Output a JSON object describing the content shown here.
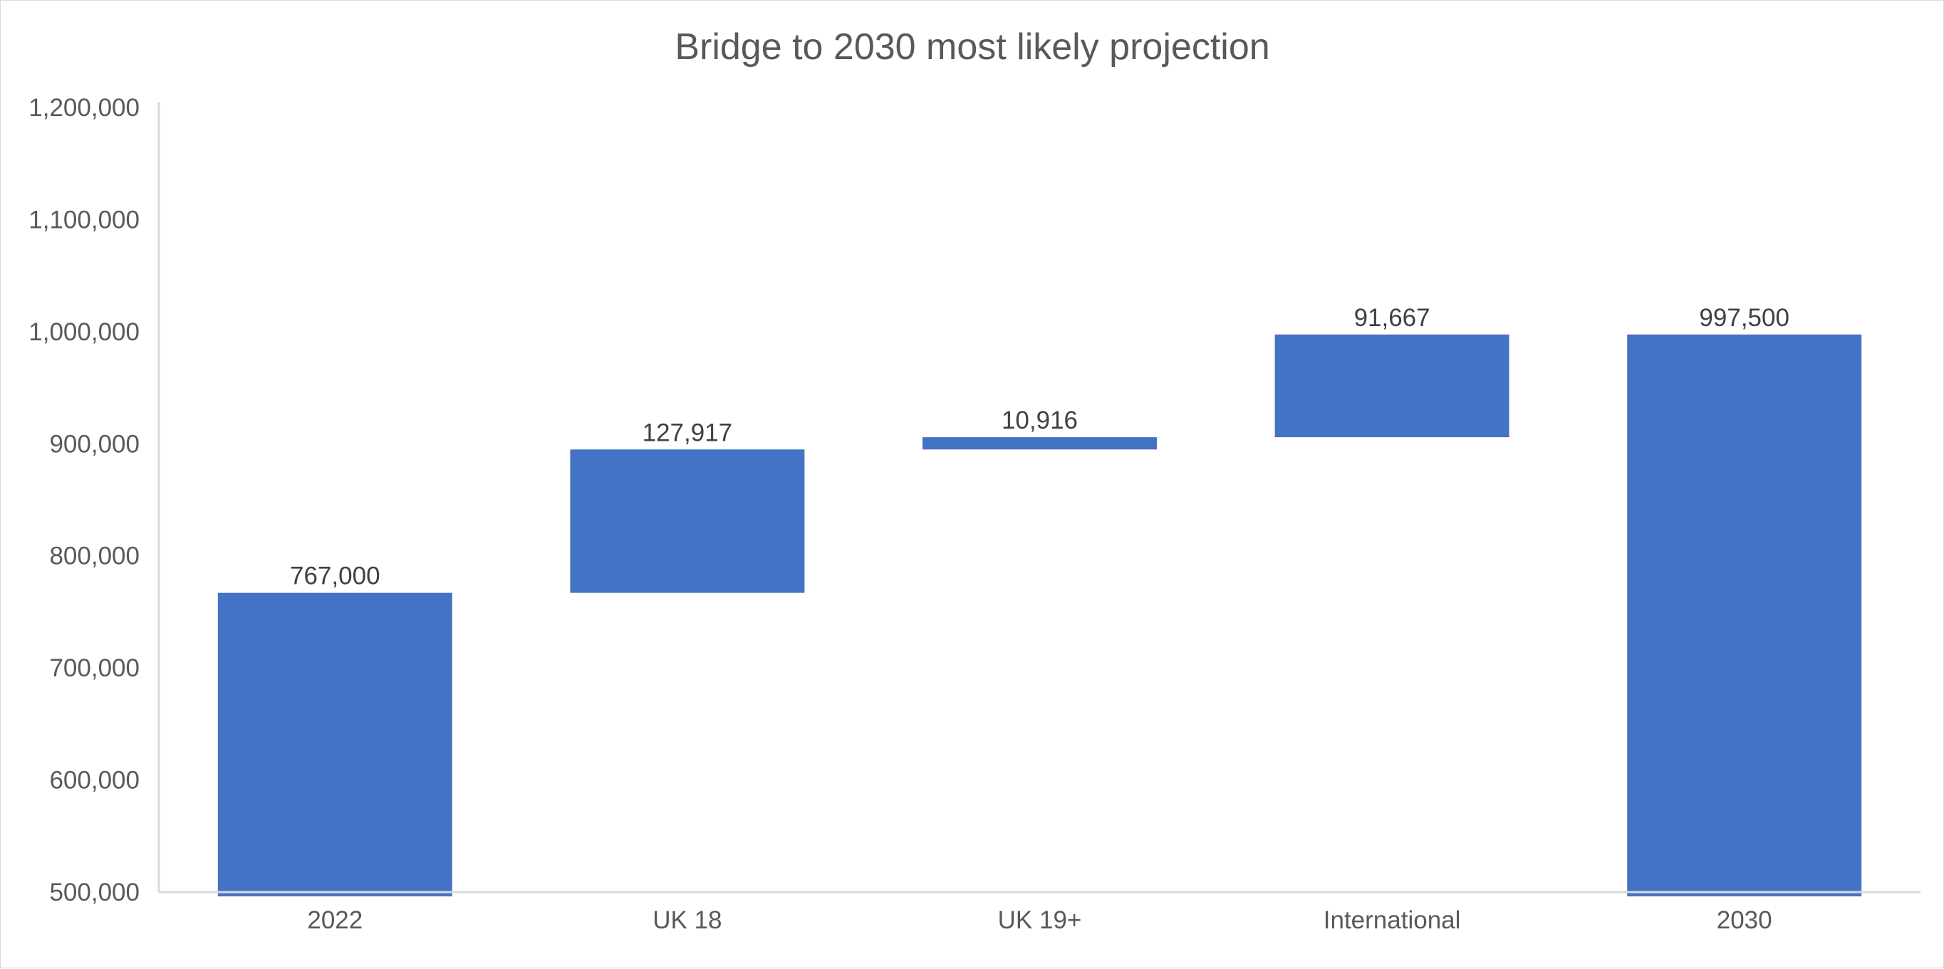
{
  "chart_data": {
    "type": "bar",
    "subtype": "waterfall",
    "title": "Bridge to 2030 most likely projection",
    "xlabel": "",
    "ylabel": "",
    "categories": [
      "2022",
      "UK 18",
      "UK 19+",
      "International",
      "2030"
    ],
    "values": [
      767000,
      127917,
      10916,
      91667,
      997500
    ],
    "bar_kinds": [
      "total",
      "increase",
      "increase",
      "increase",
      "total"
    ],
    "data_labels": [
      "767,000",
      "127,917",
      "10,916",
      "91,667",
      "997,500"
    ],
    "ylim": [
      500000,
      1200000
    ],
    "yticks": [
      500000,
      600000,
      700000,
      800000,
      900000,
      1000000,
      1100000,
      1200000
    ],
    "ytick_labels": [
      "500,000",
      "600,000",
      "700,000",
      "800,000",
      "900,000",
      "1,000,000",
      "1,100,000",
      "1,200,000"
    ],
    "grid": false,
    "legend": "none",
    "colors": {
      "bar": "#4472C4",
      "axis": "#D9D9D9",
      "text": "#595959"
    }
  }
}
